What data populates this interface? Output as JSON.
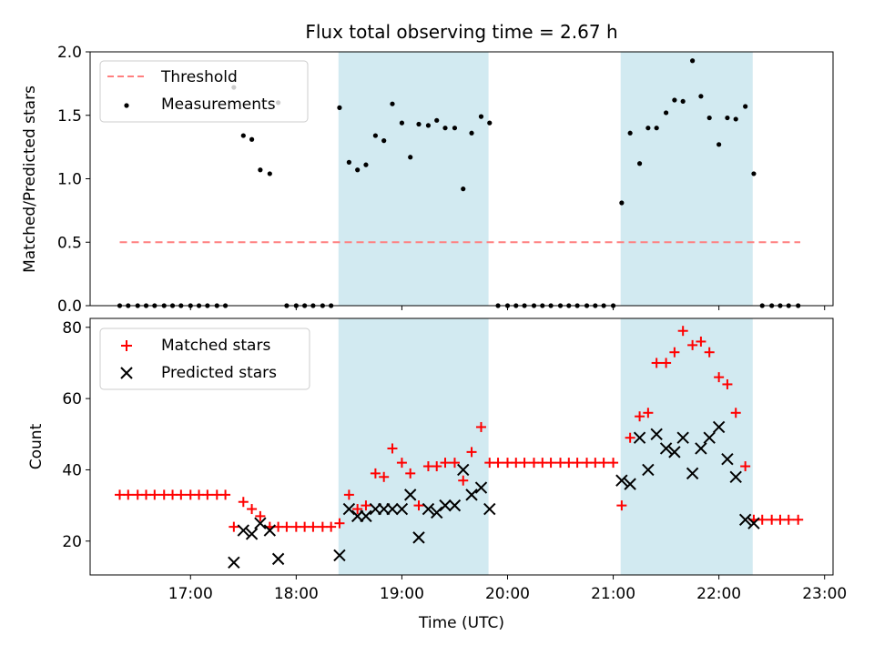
{
  "figure_title": "Flux total observing time = 2.67 h",
  "colors": {
    "threshold": "#ff7f7f",
    "measurements": "#000000",
    "matched": "#ff0000",
    "predicted": "#000000",
    "span": "#add8e6"
  },
  "chart_data": [
    {
      "type": "scatter",
      "title": "Flux total observing time = 2.67 h",
      "ylabel": "Matched/Predicted stars",
      "xlabel": "",
      "xlim": [
        16.05,
        23.08
      ],
      "ylim": [
        0.0,
        2.0
      ],
      "yticks": [
        "0.0",
        "0.5",
        "1.0",
        "1.5",
        "2.0"
      ],
      "legend": {
        "position": "top-left",
        "entries": [
          "Threshold",
          "Measurements"
        ]
      },
      "shaded_spans": [
        [
          18.4,
          19.82
        ],
        [
          21.07,
          22.32
        ]
      ],
      "threshold": {
        "name": "Threshold",
        "value": 0.5,
        "x": [
          16.33,
          22.77
        ]
      },
      "series": [
        {
          "name": "Measurements",
          "points": [
            [
              16.33,
              0
            ],
            [
              16.41,
              0
            ],
            [
              16.5,
              0
            ],
            [
              16.58,
              0
            ],
            [
              16.66,
              0
            ],
            [
              16.75,
              0
            ],
            [
              16.83,
              0
            ],
            [
              16.91,
              0
            ],
            [
              17.0,
              0
            ],
            [
              17.08,
              0
            ],
            [
              17.16,
              0
            ],
            [
              17.25,
              0
            ],
            [
              17.33,
              0
            ],
            [
              17.41,
              1.72
            ],
            [
              17.5,
              1.34
            ],
            [
              17.58,
              1.31
            ],
            [
              17.66,
              1.07
            ],
            [
              17.75,
              1.04
            ],
            [
              17.83,
              1.6
            ],
            [
              17.91,
              0
            ],
            [
              18.0,
              0
            ],
            [
              18.08,
              0
            ],
            [
              18.16,
              0
            ],
            [
              18.25,
              0
            ],
            [
              18.33,
              0
            ],
            [
              18.41,
              1.56
            ],
            [
              18.5,
              1.13
            ],
            [
              18.58,
              1.07
            ],
            [
              18.66,
              1.11
            ],
            [
              18.75,
              1.34
            ],
            [
              18.83,
              1.3
            ],
            [
              18.91,
              1.59
            ],
            [
              19.0,
              1.44
            ],
            [
              19.08,
              1.17
            ],
            [
              19.16,
              1.43
            ],
            [
              19.25,
              1.42
            ],
            [
              19.33,
              1.46
            ],
            [
              19.41,
              1.4
            ],
            [
              19.5,
              1.4
            ],
            [
              19.58,
              0.92
            ],
            [
              19.66,
              1.36
            ],
            [
              19.75,
              1.49
            ],
            [
              19.83,
              1.44
            ],
            [
              19.91,
              0
            ],
            [
              20.0,
              0
            ],
            [
              20.08,
              0
            ],
            [
              20.16,
              0
            ],
            [
              20.25,
              0
            ],
            [
              20.33,
              0
            ],
            [
              20.41,
              0
            ],
            [
              20.5,
              0
            ],
            [
              20.58,
              0
            ],
            [
              20.66,
              0
            ],
            [
              20.75,
              0
            ],
            [
              20.83,
              0
            ],
            [
              20.91,
              0
            ],
            [
              21.0,
              0
            ],
            [
              21.08,
              0.81
            ],
            [
              21.16,
              1.36
            ],
            [
              21.25,
              1.12
            ],
            [
              21.33,
              1.4
            ],
            [
              21.41,
              1.4
            ],
            [
              21.5,
              1.52
            ],
            [
              21.58,
              1.62
            ],
            [
              21.66,
              1.61
            ],
            [
              21.75,
              1.93
            ],
            [
              21.83,
              1.65
            ],
            [
              21.91,
              1.48
            ],
            [
              22.0,
              1.27
            ],
            [
              22.08,
              1.48
            ],
            [
              22.16,
              1.47
            ],
            [
              22.25,
              1.57
            ],
            [
              22.33,
              1.04
            ],
            [
              22.41,
              0
            ],
            [
              22.5,
              0
            ],
            [
              22.58,
              0
            ],
            [
              22.66,
              0
            ],
            [
              22.75,
              0
            ]
          ]
        }
      ]
    },
    {
      "type": "scatter",
      "xlabel": "Time (UTC)",
      "ylabel": "Count",
      "xlim": [
        16.05,
        23.08
      ],
      "ylim": [
        10.5,
        82.5
      ],
      "xticks": [
        [
          17,
          "17:00"
        ],
        [
          18,
          "18:00"
        ],
        [
          19,
          "19:00"
        ],
        [
          20,
          "20:00"
        ],
        [
          21,
          "21:00"
        ],
        [
          22,
          "22:00"
        ],
        [
          23,
          "23:00"
        ]
      ],
      "yticks": [
        [
          20,
          "20"
        ],
        [
          40,
          "40"
        ],
        [
          60,
          "60"
        ],
        [
          80,
          "80"
        ]
      ],
      "legend": {
        "position": "top-left",
        "entries": [
          "Matched stars",
          "Predicted stars"
        ]
      },
      "shaded_spans": [
        [
          18.4,
          19.82
        ],
        [
          21.07,
          22.32
        ]
      ],
      "series": [
        {
          "name": "Matched stars",
          "marker": "plus",
          "points": [
            [
              16.33,
              33
            ],
            [
              16.41,
              33
            ],
            [
              16.5,
              33
            ],
            [
              16.58,
              33
            ],
            [
              16.66,
              33
            ],
            [
              16.75,
              33
            ],
            [
              16.83,
              33
            ],
            [
              16.91,
              33
            ],
            [
              17.0,
              33
            ],
            [
              17.08,
              33
            ],
            [
              17.16,
              33
            ],
            [
              17.25,
              33
            ],
            [
              17.33,
              33
            ],
            [
              17.41,
              24
            ],
            [
              17.5,
              31
            ],
            [
              17.58,
              29
            ],
            [
              17.66,
              27
            ],
            [
              17.75,
              24
            ],
            [
              17.83,
              24
            ],
            [
              17.91,
              24
            ],
            [
              18.0,
              24
            ],
            [
              18.08,
              24
            ],
            [
              18.16,
              24
            ],
            [
              18.25,
              24
            ],
            [
              18.33,
              24
            ],
            [
              18.41,
              25
            ],
            [
              18.5,
              33
            ],
            [
              18.58,
              29
            ],
            [
              18.66,
              30
            ],
            [
              18.75,
              39
            ],
            [
              18.83,
              38
            ],
            [
              18.91,
              46
            ],
            [
              19.0,
              42
            ],
            [
              19.08,
              39
            ],
            [
              19.16,
              30
            ],
            [
              19.25,
              41
            ],
            [
              19.33,
              41
            ],
            [
              19.41,
              42
            ],
            [
              19.5,
              42
            ],
            [
              19.58,
              37
            ],
            [
              19.66,
              45
            ],
            [
              19.75,
              52
            ],
            [
              19.83,
              42
            ],
            [
              19.91,
              42
            ],
            [
              20.0,
              42
            ],
            [
              20.08,
              42
            ],
            [
              20.16,
              42
            ],
            [
              20.25,
              42
            ],
            [
              20.33,
              42
            ],
            [
              20.41,
              42
            ],
            [
              20.5,
              42
            ],
            [
              20.58,
              42
            ],
            [
              20.66,
              42
            ],
            [
              20.75,
              42
            ],
            [
              20.83,
              42
            ],
            [
              20.91,
              42
            ],
            [
              21.0,
              42
            ],
            [
              21.08,
              30
            ],
            [
              21.16,
              49
            ],
            [
              21.25,
              55
            ],
            [
              21.33,
              56
            ],
            [
              21.41,
              70
            ],
            [
              21.5,
              70
            ],
            [
              21.58,
              73
            ],
            [
              21.66,
              79
            ],
            [
              21.75,
              75
            ],
            [
              21.83,
              76
            ],
            [
              21.91,
              73
            ],
            [
              22.0,
              66
            ],
            [
              22.08,
              64
            ],
            [
              22.16,
              56
            ],
            [
              22.25,
              41
            ],
            [
              22.33,
              26
            ],
            [
              22.41,
              26
            ],
            [
              22.5,
              26
            ],
            [
              22.58,
              26
            ],
            [
              22.66,
              26
            ],
            [
              22.75,
              26
            ]
          ]
        },
        {
          "name": "Predicted stars",
          "marker": "x",
          "points": [
            [
              17.41,
              14
            ],
            [
              17.5,
              23
            ],
            [
              17.58,
              22
            ],
            [
              17.66,
              25
            ],
            [
              17.75,
              23
            ],
            [
              17.83,
              15
            ],
            [
              18.41,
              16
            ],
            [
              18.5,
              29
            ],
            [
              18.58,
              27
            ],
            [
              18.66,
              27
            ],
            [
              18.75,
              29
            ],
            [
              18.83,
              29
            ],
            [
              18.91,
              29
            ],
            [
              19.0,
              29
            ],
            [
              19.08,
              33
            ],
            [
              19.16,
              21
            ],
            [
              19.25,
              29
            ],
            [
              19.33,
              28
            ],
            [
              19.41,
              30
            ],
            [
              19.5,
              30
            ],
            [
              19.58,
              40
            ],
            [
              19.66,
              33
            ],
            [
              19.75,
              35
            ],
            [
              19.83,
              29
            ],
            [
              21.08,
              37
            ],
            [
              21.16,
              36
            ],
            [
              21.25,
              49
            ],
            [
              21.33,
              40
            ],
            [
              21.41,
              50
            ],
            [
              21.5,
              46
            ],
            [
              21.58,
              45
            ],
            [
              21.66,
              49
            ],
            [
              21.75,
              39
            ],
            [
              21.83,
              46
            ],
            [
              21.91,
              49
            ],
            [
              22.0,
              52
            ],
            [
              22.08,
              43
            ],
            [
              22.16,
              38
            ],
            [
              22.25,
              26
            ],
            [
              22.33,
              25
            ]
          ]
        }
      ]
    }
  ]
}
